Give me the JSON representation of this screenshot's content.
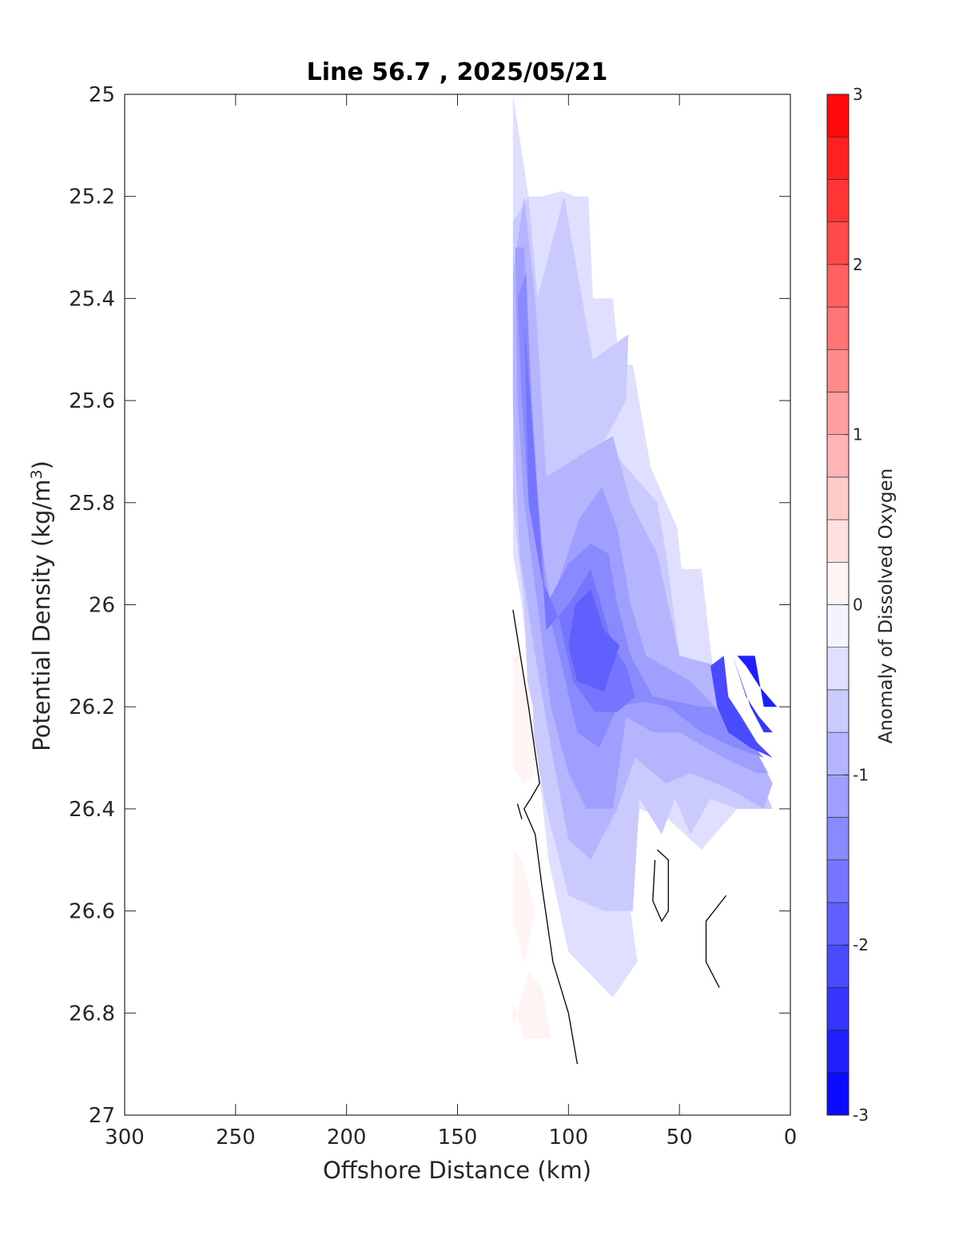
{
  "chart_data": {
    "type": "heatmap",
    "subtype": "filled-contour",
    "title": "Line 56.7 , 2025/05/21",
    "xlabel": "Offshore Distance (km)",
    "ylabel_main": "Potential Density (kg/m",
    "ylabel_sup": "3",
    "ylabel_close": ")",
    "xlim": [
      300,
      0
    ],
    "ylim": [
      27,
      25
    ],
    "x_reversed": true,
    "y_reversed": true,
    "xticks": [
      300,
      250,
      200,
      150,
      100,
      50,
      0
    ],
    "xtick_labels": [
      "300",
      "250",
      "200",
      "150",
      "100",
      "50",
      "0"
    ],
    "yticks": [
      25,
      25.2,
      25.4,
      25.6,
      25.8,
      26,
      26.2,
      26.4,
      26.6,
      26.8,
      27
    ],
    "ytick_labels": [
      "25",
      "25.2",
      "25.4",
      "25.6",
      "25.8",
      "26",
      "26.2",
      "26.4",
      "26.6",
      "26.8",
      "27"
    ],
    "colorbar": {
      "label": "Anomaly of Dissolved Oxygen",
      "range": [
        -3,
        3
      ],
      "levels": [
        -3,
        -2.75,
        -2.5,
        -2.25,
        -2,
        -1.75,
        -1.5,
        -1.25,
        -1,
        -0.75,
        -0.5,
        -0.25,
        0,
        0.25,
        0.5,
        0.75,
        1,
        1.25,
        1.5,
        1.75,
        2,
        2.25,
        2.5,
        2.75,
        3
      ],
      "ticks": [
        -3,
        -2,
        -1,
        0,
        1,
        2,
        3
      ],
      "tick_labels": [
        "-3",
        "-2",
        "-1",
        "0",
        "1",
        "2",
        "3"
      ],
      "neg_color": "#0000ff",
      "pos_color": "#ff0000",
      "zero_color": "#ffffff"
    },
    "regions": [
      {
        "level": -0.375,
        "points": [
          [
            125,
            25
          ],
          [
            118,
            25.2
          ],
          [
            112,
            25.2
          ],
          [
            103,
            25.19
          ],
          [
            97,
            25.2
          ],
          [
            91,
            25.2
          ],
          [
            89,
            25.4
          ],
          [
            80,
            25.4
          ],
          [
            77,
            25.53
          ],
          [
            71,
            25.53
          ],
          [
            63,
            25.73
          ],
          [
            51,
            25.85
          ],
          [
            49,
            25.93
          ],
          [
            40,
            25.93
          ],
          [
            33,
            26.2
          ],
          [
            27,
            26.36
          ],
          [
            8,
            26.4
          ],
          [
            5,
            26.3
          ],
          [
            8,
            26.4
          ],
          [
            24,
            26.4
          ],
          [
            40,
            26.48
          ],
          [
            55,
            26.42
          ],
          [
            68,
            26.4
          ],
          [
            72,
            26.6
          ],
          [
            69,
            26.7
          ],
          [
            80,
            26.77
          ],
          [
            100,
            26.68
          ],
          [
            109,
            26.5
          ],
          [
            114,
            26.3
          ],
          [
            121,
            26.0
          ],
          [
            125,
            25.9
          ]
        ]
      },
      {
        "level": -0.625,
        "points": [
          [
            125,
            25.25
          ],
          [
            118,
            25.2
          ],
          [
            114,
            25.4
          ],
          [
            102,
            25.2
          ],
          [
            89,
            25.52
          ],
          [
            73,
            25.47
          ],
          [
            74,
            25.6
          ],
          [
            84,
            25.68
          ],
          [
            60,
            25.8
          ],
          [
            56,
            25.9
          ],
          [
            50,
            26.1
          ],
          [
            32,
            26.12
          ],
          [
            27,
            26.3
          ],
          [
            15,
            26.33
          ],
          [
            8,
            26.4
          ],
          [
            24,
            26.4
          ],
          [
            36,
            26.38
          ],
          [
            45,
            26.45
          ],
          [
            52,
            26.38
          ],
          [
            58,
            26.45
          ],
          [
            68,
            26.38
          ],
          [
            71,
            26.6
          ],
          [
            84,
            26.6
          ],
          [
            100,
            26.57
          ],
          [
            110,
            26.4
          ],
          [
            118,
            26.2
          ],
          [
            120,
            26.0
          ],
          [
            125,
            25.8
          ]
        ]
      },
      {
        "level": -0.875,
        "points": [
          [
            125,
            25.35
          ],
          [
            120,
            25.2
          ],
          [
            115,
            25.4
          ],
          [
            110,
            25.75
          ],
          [
            92,
            25.7
          ],
          [
            80,
            25.67
          ],
          [
            72,
            25.8
          ],
          [
            60,
            25.9
          ],
          [
            50,
            26.1
          ],
          [
            33,
            26.12
          ],
          [
            28,
            26.2
          ],
          [
            14,
            26.3
          ],
          [
            8,
            26.35
          ],
          [
            12,
            26.4
          ],
          [
            28,
            26.36
          ],
          [
            45,
            26.33
          ],
          [
            56,
            26.35
          ],
          [
            70,
            26.3
          ],
          [
            78,
            26.4
          ],
          [
            90,
            26.5
          ],
          [
            100,
            26.46
          ],
          [
            107,
            26.3
          ],
          [
            115,
            26.1
          ],
          [
            122,
            25.9
          ],
          [
            125,
            25.6
          ]
        ]
      },
      {
        "level": -1.125,
        "points": [
          [
            124,
            25.3
          ],
          [
            120,
            25.3
          ],
          [
            117,
            25.55
          ],
          [
            113,
            25.85
          ],
          [
            108,
            26.0
          ],
          [
            95,
            25.83
          ],
          [
            85,
            25.77
          ],
          [
            78,
            25.85
          ],
          [
            72,
            26.0
          ],
          [
            65,
            26.1
          ],
          [
            45,
            26.15
          ],
          [
            34,
            26.2
          ],
          [
            20,
            26.25
          ],
          [
            10,
            26.33
          ],
          [
            15,
            26.33
          ],
          [
            30,
            26.3
          ],
          [
            50,
            26.25
          ],
          [
            62,
            26.25
          ],
          [
            74,
            26.22
          ],
          [
            80,
            26.4
          ],
          [
            92,
            26.4
          ],
          [
            100,
            26.33
          ],
          [
            108,
            26.2
          ],
          [
            114,
            26.0
          ],
          [
            120,
            25.8
          ],
          [
            123,
            25.6
          ]
        ]
      },
      {
        "level": -1.375,
        "points": [
          [
            123,
            25.4
          ],
          [
            119,
            25.35
          ],
          [
            117,
            25.6
          ],
          [
            110,
            26.0
          ],
          [
            100,
            25.92
          ],
          [
            90,
            25.88
          ],
          [
            82,
            25.9
          ],
          [
            78,
            26.0
          ],
          [
            72,
            26.1
          ],
          [
            62,
            26.18
          ],
          [
            40,
            26.2
          ],
          [
            35,
            26.2
          ],
          [
            22,
            26.25
          ],
          [
            12,
            26.3
          ],
          [
            25,
            26.28
          ],
          [
            40,
            26.25
          ],
          [
            55,
            26.2
          ],
          [
            66,
            26.19
          ],
          [
            78,
            26.2
          ],
          [
            86,
            26.28
          ],
          [
            96,
            26.25
          ],
          [
            104,
            26.1
          ],
          [
            110,
            26.0
          ],
          [
            118,
            25.8
          ],
          [
            121,
            25.6
          ]
        ]
      },
      {
        "level": -1.625,
        "points": [
          [
            120,
            25.45
          ],
          [
            117,
            25.6
          ],
          [
            110,
            26.05
          ],
          [
            100,
            26.0
          ],
          [
            90,
            25.93
          ],
          [
            80,
            26.08
          ],
          [
            74,
            26.12
          ],
          [
            70,
            26.18
          ],
          [
            78,
            26.21
          ],
          [
            88,
            26.21
          ],
          [
            98,
            26.15
          ],
          [
            104,
            26.03
          ],
          [
            112,
            25.95
          ],
          [
            118,
            25.8
          ]
        ]
      },
      {
        "level": -1.875,
        "points": [
          [
            97,
            26.0
          ],
          [
            90,
            25.97
          ],
          [
            84,
            26.05
          ],
          [
            77,
            26.08
          ],
          [
            84,
            26.17
          ],
          [
            96,
            26.15
          ],
          [
            100,
            26.08
          ]
        ]
      },
      {
        "level": -2.125,
        "points": [
          [
            36,
            26.12
          ],
          [
            30,
            26.1
          ],
          [
            28,
            26.18
          ],
          [
            22,
            26.22
          ],
          [
            15,
            26.27
          ],
          [
            8,
            26.3
          ],
          [
            18,
            26.28
          ],
          [
            28,
            26.25
          ],
          [
            33,
            26.2
          ]
        ]
      },
      {
        "level": -2.375,
        "points": [
          [
            26,
            26.1
          ],
          [
            22,
            26.15
          ],
          [
            18,
            26.2
          ],
          [
            12,
            26.25
          ],
          [
            8,
            26.25
          ],
          [
            14,
            26.22
          ],
          [
            20,
            26.18
          ]
        ]
      },
      {
        "level": -2.625,
        "points": [
          [
            24,
            26.1
          ],
          [
            16,
            26.1
          ],
          [
            12,
            26.2
          ],
          [
            6,
            26.2
          ],
          [
            14,
            26.16
          ],
          [
            20,
            26.12
          ]
        ]
      },
      {
        "level": 0.125,
        "points": [
          [
            125,
            26.1
          ],
          [
            121,
            26.1
          ],
          [
            116,
            26.2
          ],
          [
            115,
            26.33
          ],
          [
            120,
            26.35
          ],
          [
            125,
            26.32
          ]
        ]
      },
      {
        "level": 0.125,
        "points": [
          [
            125,
            26.48
          ],
          [
            121,
            26.5
          ],
          [
            115,
            26.6
          ],
          [
            120,
            26.7
          ],
          [
            125,
            26.62
          ]
        ]
      },
      {
        "level": 0.125,
        "points": [
          [
            125,
            26.78
          ],
          [
            120,
            26.85
          ],
          [
            108,
            26.85
          ],
          [
            112,
            26.75
          ],
          [
            118,
            26.72
          ],
          [
            125,
            26.83
          ]
        ]
      }
    ],
    "contour_lines": [
      {
        "level": 0,
        "points": [
          [
            125,
            26.01
          ],
          [
            118,
            26.2
          ],
          [
            113,
            26.35
          ],
          [
            117,
            26.38
          ],
          [
            120,
            26.4
          ],
          [
            115,
            26.45
          ],
          [
            112,
            26.55
          ],
          [
            107,
            26.7
          ],
          [
            100,
            26.8
          ],
          [
            96,
            26.9
          ]
        ]
      },
      {
        "level": 0,
        "points": [
          [
            123,
            26.39
          ],
          [
            121,
            26.42
          ]
        ]
      },
      {
        "level": 0,
        "points": [
          [
            60,
            26.48
          ],
          [
            55,
            26.5
          ],
          [
            55,
            26.6
          ],
          [
            58,
            26.62
          ],
          [
            62,
            26.58
          ],
          [
            61,
            26.5
          ]
        ]
      },
      {
        "level": 0,
        "points": [
          [
            29,
            26.57
          ],
          [
            38,
            26.62
          ],
          [
            38,
            26.7
          ],
          [
            32,
            26.75
          ]
        ]
      }
    ]
  }
}
